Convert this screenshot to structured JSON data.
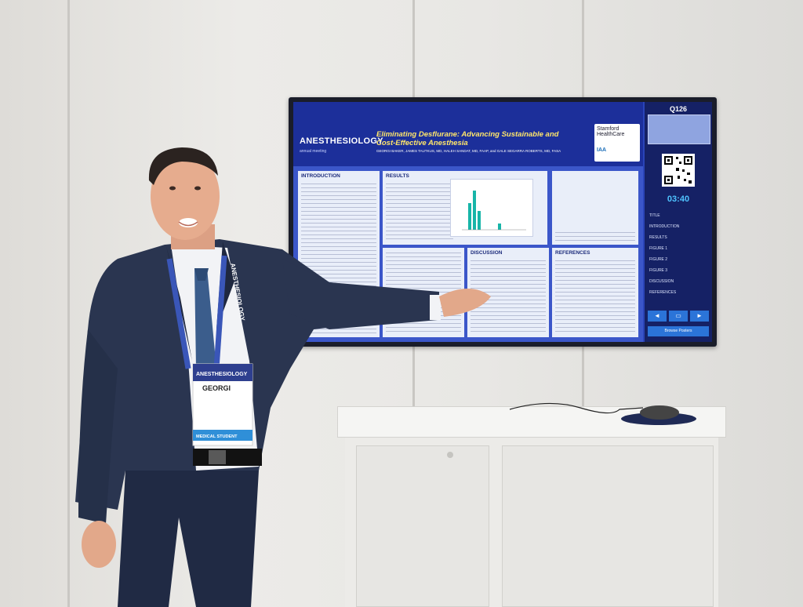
{
  "poster": {
    "brand": "ANESTHESIOLOGY",
    "brand_sub": "annual meeting",
    "title": "Eliminating Desflurane: Advancing Sustainable and Cost-Effective Anesthesia",
    "authors": "GEORGI BAKER, JAMES TAUTKUS, MD, HALEH SANDAT, MD, FAAP, and GALE SEGARRA ROBERTS, MD, FASA",
    "logo_top": "Stamford HealthCare",
    "logo_bottom": "IAA",
    "sections": {
      "introduction": "INTRODUCTION",
      "results": "RESULTS",
      "discussion": "DISCUSSION",
      "references": "REFERENCES"
    }
  },
  "sidebar": {
    "poster_number": "Q126",
    "timer": "03:40",
    "menu": [
      "TITLE",
      "INTRODUCTION",
      "RESULTS",
      "FIGURE 1",
      "FIGURE 2",
      "FIGURE 3",
      "DISCUSSION",
      "REFERENCES"
    ],
    "nav_prev": "◄",
    "nav_home": "▭",
    "nav_next": "►",
    "browse_label": "Browse Posters"
  },
  "badge": {
    "event": "ANESTHESIOLOGY",
    "name": "GEORGI",
    "ribbon": "MEDICAL STUDENT",
    "lanyard": "ANESTHESIOLOGY"
  },
  "colors": {
    "screen_blue": "#2a44b8",
    "poster_title": "#ffe66a",
    "timer": "#4fc3ff",
    "suit": "#2a3550"
  }
}
